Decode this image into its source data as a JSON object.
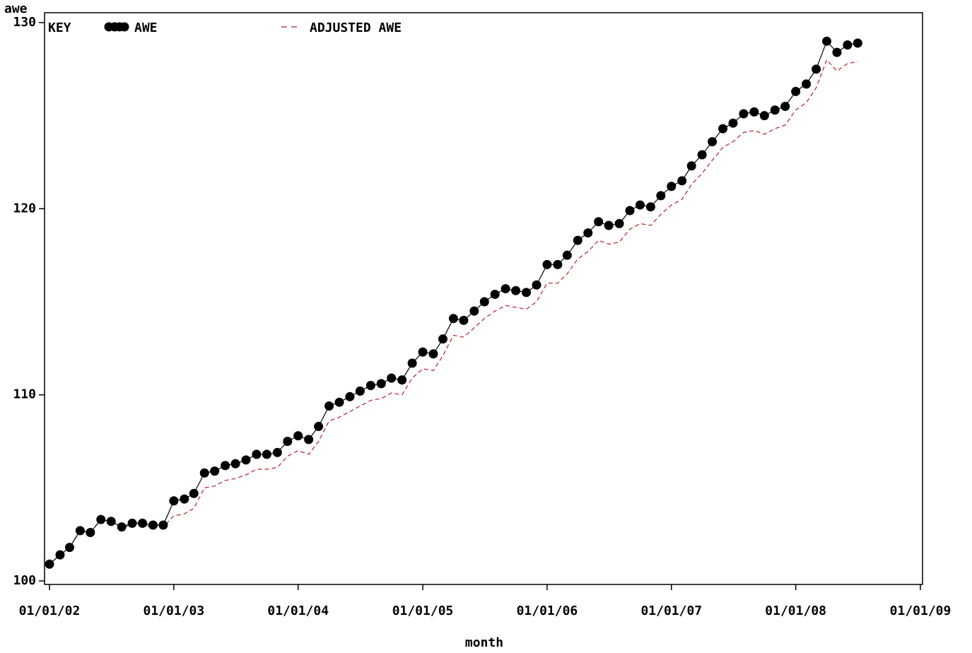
{
  "chart_data": {
    "type": "line",
    "ylabel": "awe",
    "xlabel": "month",
    "legend_title": "KEY",
    "x": [
      "2002-01-01",
      "2002-02-01",
      "2002-03-01",
      "2002-04-01",
      "2002-05-01",
      "2002-06-01",
      "2002-07-01",
      "2002-08-01",
      "2002-09-01",
      "2002-10-01",
      "2002-11-01",
      "2002-12-01",
      "2003-01-01",
      "2003-02-01",
      "2003-03-01",
      "2003-04-01",
      "2003-05-01",
      "2003-06-01",
      "2003-07-01",
      "2003-08-01",
      "2003-09-01",
      "2003-10-01",
      "2003-11-01",
      "2003-12-01",
      "2004-01-01",
      "2004-02-01",
      "2004-03-01",
      "2004-04-01",
      "2004-05-01",
      "2004-06-01",
      "2004-07-01",
      "2004-08-01",
      "2004-09-01",
      "2004-10-01",
      "2004-11-01",
      "2004-12-01",
      "2005-01-01",
      "2005-02-01",
      "2005-03-01",
      "2005-04-01",
      "2005-05-01",
      "2005-06-01",
      "2005-07-01",
      "2005-08-01",
      "2005-09-01",
      "2005-10-01",
      "2005-11-01",
      "2005-12-01",
      "2006-01-01",
      "2006-02-01",
      "2006-03-01",
      "2006-04-01",
      "2006-05-01",
      "2006-06-01",
      "2006-07-01",
      "2006-08-01",
      "2006-09-01",
      "2006-10-01",
      "2006-11-01",
      "2006-12-01",
      "2007-01-01",
      "2007-02-01",
      "2007-03-01",
      "2007-04-01",
      "2007-05-01",
      "2007-06-01",
      "2007-07-01",
      "2007-08-01",
      "2007-09-01",
      "2007-10-01",
      "2007-11-01",
      "2007-12-01",
      "2008-01-01",
      "2008-02-01",
      "2008-03-01",
      "2008-04-01",
      "2008-05-01",
      "2008-06-01",
      "2008-07-01"
    ],
    "series": [
      {
        "name": "AWE",
        "color": "#000000",
        "marker": true,
        "dashed": false,
        "values": [
          100.9,
          101.4,
          101.8,
          102.7,
          102.6,
          103.3,
          103.2,
          102.9,
          103.1,
          103.1,
          103.0,
          103.0,
          104.3,
          104.4,
          104.7,
          105.8,
          105.9,
          106.2,
          106.3,
          106.5,
          106.8,
          106.8,
          106.9,
          107.5,
          107.8,
          107.6,
          108.3,
          109.4,
          109.6,
          109.9,
          110.2,
          110.5,
          110.6,
          110.9,
          110.8,
          111.7,
          112.3,
          112.2,
          113.0,
          114.1,
          114.0,
          114.5,
          115.0,
          115.4,
          115.7,
          115.6,
          115.5,
          115.9,
          117.0,
          117.0,
          117.5,
          118.3,
          118.7,
          119.3,
          119.1,
          119.2,
          119.9,
          120.2,
          120.1,
          120.7,
          121.2,
          121.5,
          122.3,
          122.9,
          123.6,
          124.3,
          124.6,
          125.1,
          125.2,
          125.0,
          125.3,
          125.5,
          126.3,
          126.7,
          127.5,
          129.0,
          128.4,
          128.8,
          128.9
        ]
      },
      {
        "name": "ADJUSTED AWE",
        "color": "#b22222",
        "marker": false,
        "dashed": true,
        "values": [
          100.9,
          101.4,
          101.8,
          102.7,
          102.6,
          103.3,
          103.2,
          102.9,
          103.0,
          103.0,
          102.9,
          102.9,
          103.5,
          103.6,
          103.9,
          105.0,
          105.1,
          105.4,
          105.5,
          105.7,
          106.0,
          106.0,
          106.1,
          106.7,
          107.0,
          106.8,
          107.5,
          108.6,
          108.8,
          109.1,
          109.4,
          109.7,
          109.8,
          110.1,
          110.0,
          110.9,
          111.4,
          111.3,
          112.1,
          113.2,
          113.1,
          113.6,
          114.1,
          114.5,
          114.8,
          114.7,
          114.6,
          115.0,
          116.0,
          116.0,
          116.5,
          117.3,
          117.7,
          118.3,
          118.1,
          118.2,
          118.9,
          119.2,
          119.1,
          119.7,
          120.2,
          120.5,
          121.3,
          121.9,
          122.6,
          123.3,
          123.6,
          124.1,
          124.2,
          124.0,
          124.3,
          124.5,
          125.3,
          125.7,
          126.5,
          128.0,
          127.4,
          127.8,
          127.9
        ]
      }
    ],
    "xlim": [
      "2002-01-01",
      "2009-01-01"
    ],
    "xticks": [
      {
        "value": "2002-01-01",
        "label": "01/01/02"
      },
      {
        "value": "2003-01-01",
        "label": "01/01/03"
      },
      {
        "value": "2004-01-01",
        "label": "01/01/04"
      },
      {
        "value": "2005-01-01",
        "label": "01/01/05"
      },
      {
        "value": "2006-01-01",
        "label": "01/01/06"
      },
      {
        "value": "2007-01-01",
        "label": "01/01/07"
      },
      {
        "value": "2008-01-01",
        "label": "01/01/08"
      },
      {
        "value": "2009-01-01",
        "label": "01/01/09"
      }
    ],
    "ylim": [
      100,
      130
    ],
    "yticks": [
      100,
      110,
      120,
      130
    ]
  }
}
